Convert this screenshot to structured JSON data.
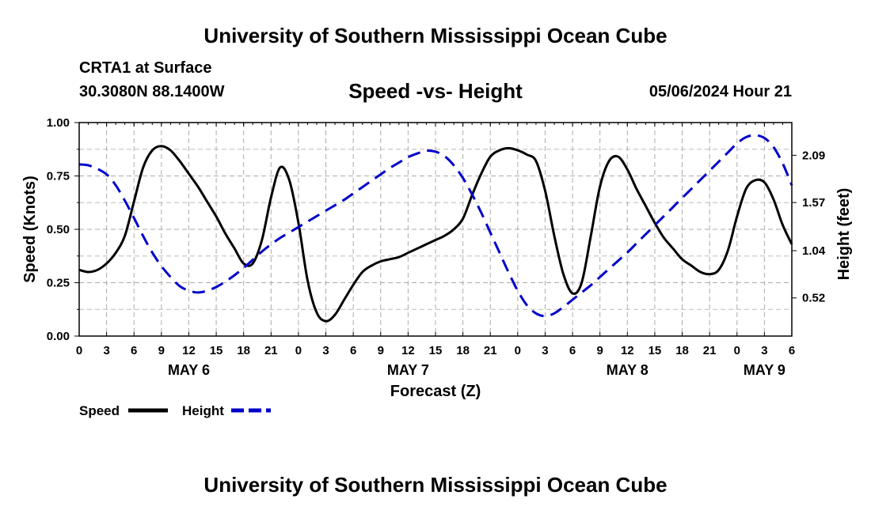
{
  "page": {
    "title_top": "University of Southern Mississippi Ocean Cube",
    "title_bottom": "University of Southern Mississippi Ocean Cube",
    "station": "CRTA1 at Surface",
    "coords": "30.3080N  88.1400W",
    "subtitle": "Speed -vs- Height",
    "timestamp": "05/06/2024 Hour 21"
  },
  "chart_data": {
    "type": "line",
    "title": "Speed -vs- Height",
    "xlabel": "Forecast (Z)",
    "ylabel": "Speed (Knots)",
    "y2label": "Height (feet)",
    "x_unit": "hours from May 6 00Z",
    "xlim": [
      0,
      78
    ],
    "ylim": [
      0,
      1
    ],
    "y2lim": [
      0.1,
      2.45
    ],
    "grid": true,
    "x_ticks": [
      0,
      3,
      6,
      9,
      12,
      15,
      18,
      21,
      24,
      27,
      30,
      33,
      36,
      39,
      42,
      45,
      48,
      51,
      54,
      57,
      60,
      63,
      66,
      69,
      72,
      75,
      78
    ],
    "x_tick_labels": [
      "0",
      "3",
      "6",
      "9",
      "12",
      "15",
      "18",
      "21",
      "0",
      "3",
      "6",
      "9",
      "12",
      "15",
      "18",
      "21",
      "0",
      "3",
      "6",
      "9",
      "12",
      "15",
      "18",
      "21",
      "0",
      "3",
      "6"
    ],
    "y_ticks": [
      0,
      0.25,
      0.5,
      0.75,
      1.0
    ],
    "y_tick_labels": [
      "0.00",
      "0.25",
      "0.50",
      "0.75",
      "1.00"
    ],
    "y2_ticks": [
      0.52,
      1.04,
      1.57,
      2.09
    ],
    "y2_tick_labels": [
      "0.52",
      "1.04",
      "1.57",
      "2.09"
    ],
    "day_labels": [
      {
        "x": 12,
        "label": "MAY 6"
      },
      {
        "x": 36,
        "label": "MAY 7"
      },
      {
        "x": 60,
        "label": "MAY 8"
      },
      {
        "x": 75,
        "label": "MAY 9"
      }
    ],
    "legend": {
      "placement": "bottom-left",
      "entries": [
        "Speed",
        "Height"
      ]
    },
    "series": [
      {
        "name": "Speed",
        "axis": "left",
        "color": "#000000",
        "style": "solid",
        "x": [
          0,
          1,
          2,
          3,
          4,
          5,
          6,
          7,
          8,
          9,
          10,
          11,
          12,
          13,
          14,
          15,
          16,
          17,
          18,
          19,
          20,
          21,
          22,
          23,
          24,
          25,
          26,
          27,
          28,
          29,
          30,
          31,
          32,
          33,
          34,
          35,
          36,
          37,
          38,
          39,
          40,
          41,
          42,
          43,
          44,
          45,
          46,
          47,
          48,
          49,
          50,
          51,
          52,
          53,
          54,
          55,
          56,
          57,
          58,
          59,
          60,
          61,
          62,
          63,
          64,
          65,
          66,
          67,
          68,
          69,
          70,
          71,
          72,
          73,
          74,
          75,
          76,
          77,
          78
        ],
        "values": [
          0.31,
          0.3,
          0.31,
          0.34,
          0.39,
          0.47,
          0.63,
          0.79,
          0.87,
          0.89,
          0.87,
          0.82,
          0.76,
          0.7,
          0.63,
          0.56,
          0.48,
          0.41,
          0.34,
          0.34,
          0.45,
          0.65,
          0.79,
          0.73,
          0.53,
          0.26,
          0.11,
          0.07,
          0.1,
          0.17,
          0.24,
          0.3,
          0.33,
          0.35,
          0.36,
          0.37,
          0.39,
          0.41,
          0.43,
          0.45,
          0.47,
          0.5,
          0.55,
          0.66,
          0.76,
          0.84,
          0.87,
          0.88,
          0.87,
          0.85,
          0.82,
          0.68,
          0.47,
          0.29,
          0.2,
          0.25,
          0.47,
          0.7,
          0.82,
          0.84,
          0.78,
          0.69,
          0.61,
          0.53,
          0.46,
          0.41,
          0.36,
          0.33,
          0.3,
          0.29,
          0.31,
          0.4,
          0.56,
          0.69,
          0.73,
          0.72,
          0.64,
          0.52,
          0.43
        ]
      },
      {
        "name": "Height",
        "axis": "right",
        "color": "#0000cc",
        "style": "dashed",
        "x": [
          0,
          1,
          2,
          3,
          4,
          5,
          6,
          7,
          8,
          9,
          10,
          11,
          12,
          13,
          14,
          15,
          16,
          17,
          18,
          19,
          20,
          21,
          22,
          23,
          24,
          25,
          26,
          27,
          28,
          29,
          30,
          31,
          32,
          33,
          34,
          35,
          36,
          37,
          38,
          39,
          40,
          41,
          42,
          43,
          44,
          45,
          46,
          47,
          48,
          49,
          50,
          51,
          52,
          53,
          54,
          55,
          56,
          57,
          58,
          59,
          60,
          61,
          62,
          63,
          64,
          65,
          66,
          67,
          68,
          69,
          70,
          71,
          72,
          73,
          74,
          75,
          76,
          77,
          78
        ],
        "values": [
          1.99,
          1.98,
          1.94,
          1.88,
          1.76,
          1.59,
          1.4,
          1.2,
          1.02,
          0.87,
          0.75,
          0.65,
          0.6,
          0.58,
          0.6,
          0.64,
          0.7,
          0.77,
          0.85,
          0.94,
          1.03,
          1.11,
          1.18,
          1.24,
          1.3,
          1.36,
          1.42,
          1.48,
          1.54,
          1.6,
          1.67,
          1.74,
          1.81,
          1.88,
          1.95,
          2.01,
          2.07,
          2.11,
          2.14,
          2.13,
          2.08,
          1.98,
          1.84,
          1.66,
          1.46,
          1.24,
          1.02,
          0.8,
          0.6,
          0.44,
          0.35,
          0.32,
          0.35,
          0.42,
          0.5,
          0.58,
          0.66,
          0.75,
          0.84,
          0.93,
          1.02,
          1.12,
          1.22,
          1.32,
          1.42,
          1.52,
          1.62,
          1.72,
          1.82,
          1.92,
          2.02,
          2.12,
          2.22,
          2.29,
          2.31,
          2.28,
          2.18,
          2.0,
          1.76
        ]
      }
    ]
  }
}
